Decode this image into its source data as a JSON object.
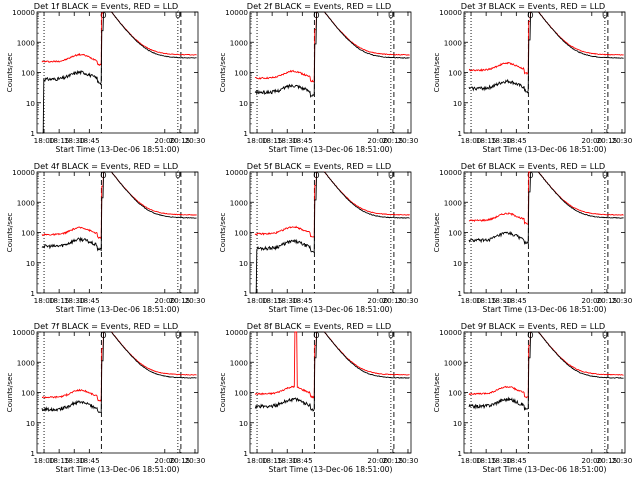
{
  "chart_data": {
    "type": "line",
    "shared": {
      "xlabel": "Start Time (13-Dec-06 18:51:00)",
      "ylabel": "Counts/sec",
      "yscale": "log",
      "ylim": [
        1,
        10000
      ],
      "xlim": [
        "17:53",
        "20:33"
      ],
      "xticks": [
        "18:00",
        "18:15",
        "18:30",
        "18:45",
        "20:00",
        "20:15",
        "20:30"
      ],
      "yticks": [
        "1",
        "10",
        "100",
        "1000",
        "10000"
      ],
      "grid": false,
      "markers": [
        "O",
        "Ú"
      ],
      "series_colors": {
        "events": "#000000",
        "lld": "#ff0000"
      },
      "vertical_lines": [
        {
          "time": "18:00",
          "style": "dotted"
        },
        {
          "time": "18:57",
          "style": "dashed"
        },
        {
          "time": "20:13",
          "style": "dotted"
        },
        {
          "time": "20:16",
          "style": "dashed"
        }
      ]
    },
    "panels": [
      {
        "title": "Det 1f BLACK = Events, RED = LLD",
        "black_base": 60,
        "red_base": 230,
        "black_dip": true,
        "spike": false
      },
      {
        "title": "Det 2f BLACK = Events, RED = LLD",
        "black_base": 22,
        "red_base": 65,
        "black_dip": false,
        "spike": false
      },
      {
        "title": "Det 3f BLACK = Events, RED = LLD",
        "black_base": 30,
        "red_base": 120,
        "black_dip": false,
        "spike": false
      },
      {
        "title": "Det 4f BLACK = Events, RED = LLD",
        "black_base": 35,
        "red_base": 85,
        "black_dip": false,
        "spike": false
      },
      {
        "title": "Det 5f BLACK = Events, RED = LLD",
        "black_base": 30,
        "red_base": 90,
        "black_dip": true,
        "spike": false
      },
      {
        "title": "Det 6f BLACK = Events, RED = LLD",
        "black_base": 55,
        "red_base": 250,
        "black_dip": false,
        "spike": false
      },
      {
        "title": "Det 7f BLACK = Events, RED = LLD",
        "black_base": 28,
        "red_base": 70,
        "black_dip": false,
        "spike": false
      },
      {
        "title": "Det 8f BLACK = Events, RED = LLD",
        "black_base": 35,
        "red_base": 90,
        "black_dip": false,
        "spike": true
      },
      {
        "title": "Det 9f BLACK = Events, RED = LLD",
        "black_base": 35,
        "red_base": 90,
        "black_dip": false,
        "spike": false
      }
    ]
  }
}
